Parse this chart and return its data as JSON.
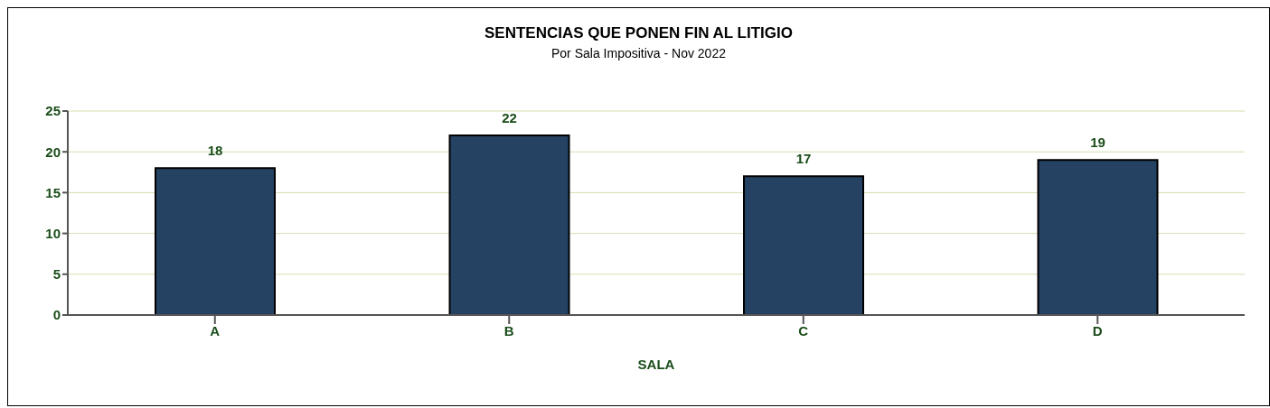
{
  "chart_data": {
    "type": "bar",
    "title": "SENTENCIAS QUE PONEN FIN AL LITIGIO",
    "subtitle": "Por Sala Impositiva - Nov 2022",
    "xlabel": "SALA",
    "categories": [
      "A",
      "B",
      "C",
      "D"
    ],
    "values": [
      18,
      22,
      17,
      19
    ],
    "color": "#264263",
    "ylim": [
      0,
      25
    ],
    "yticks": [
      0,
      5,
      10,
      15,
      20,
      25
    ],
    "grid": "y",
    "data_labels": true
  }
}
